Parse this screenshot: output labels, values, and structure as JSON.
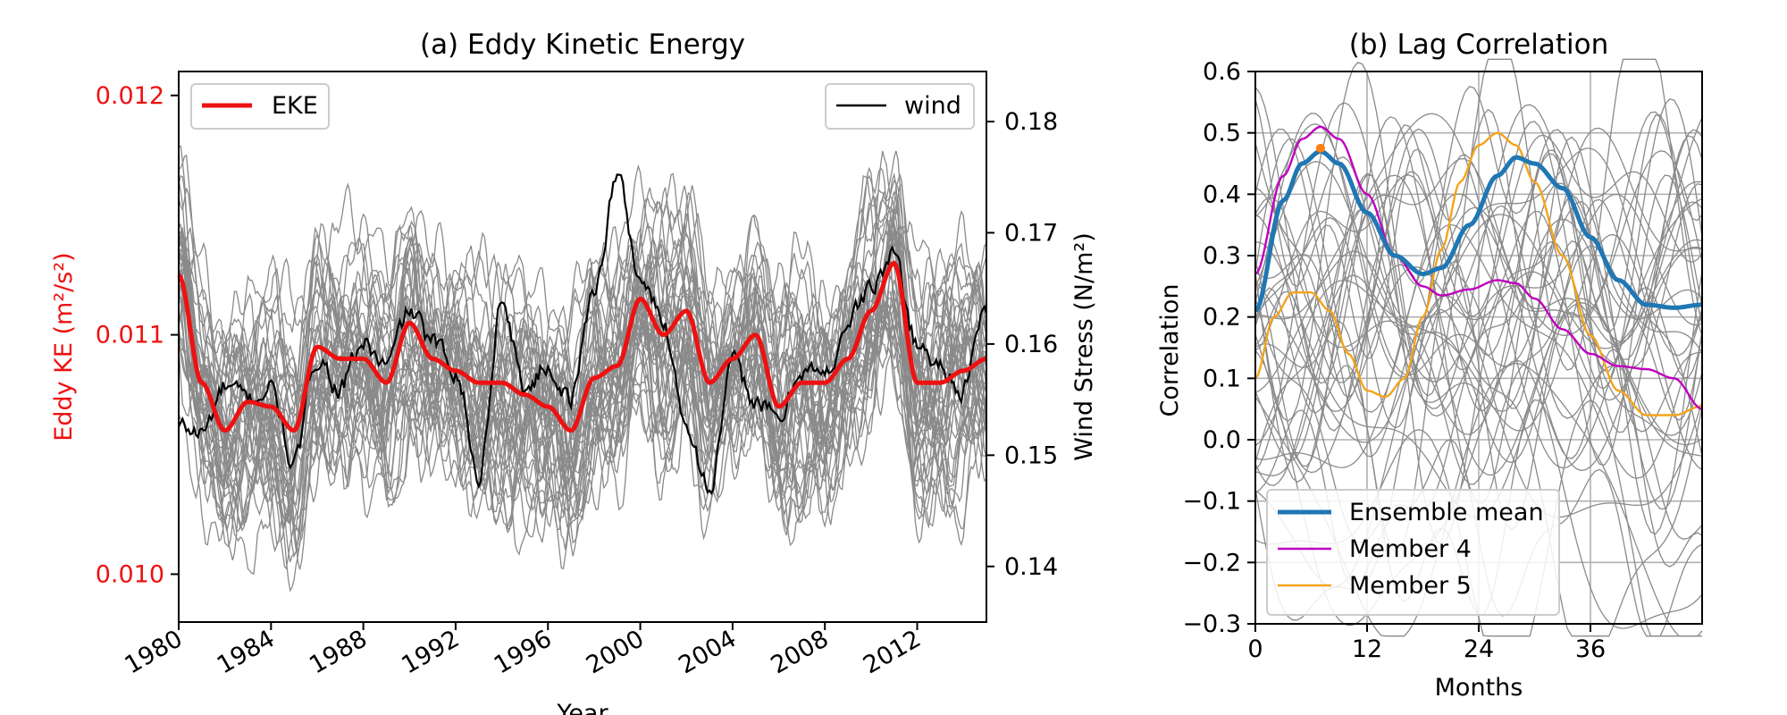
{
  "chart_data": [
    {
      "type": "line",
      "title": "(a) Eddy Kinetic Energy",
      "xlabel": "Year",
      "ylabel_left": "Eddy KE (m²/s²)",
      "ylabel_right": "Wind Stress (N/m²)",
      "xlim": [
        1980,
        2015
      ],
      "ylim_left": [
        0.0098,
        0.0121
      ],
      "ylim_right": [
        0.135,
        0.1845
      ],
      "x_ticks": [
        "1980",
        "1984",
        "1988",
        "1992",
        "1996",
        "2000",
        "2004",
        "2008",
        "2012"
      ],
      "y_left_ticks": [
        "0.010",
        "0.011",
        "0.012"
      ],
      "y_right_ticks": [
        "0.14",
        "0.15",
        "0.16",
        "0.17",
        "0.18"
      ],
      "ensemble_member_count": 40,
      "series": [
        {
          "name": "EKE",
          "axis": "left",
          "color": "#ee1111",
          "x": [
            1980,
            1981,
            1982,
            1983,
            1984,
            1985,
            1986,
            1987,
            1988,
            1989,
            1990,
            1991,
            1992,
            1993,
            1994,
            1995,
            1996,
            1997,
            1998,
            1999,
            2000,
            2001,
            2002,
            2003,
            2004,
            2005,
            2006,
            2007,
            2008,
            2009,
            2010,
            2011,
            2012,
            2013,
            2014,
            2015
          ],
          "values": [
            0.01125,
            0.0108,
            0.0106,
            0.01072,
            0.0107,
            0.0106,
            0.01095,
            0.0109,
            0.0109,
            0.0108,
            0.01105,
            0.0109,
            0.01085,
            0.0108,
            0.0108,
            0.01075,
            0.0107,
            0.0106,
            0.01082,
            0.01087,
            0.01115,
            0.011,
            0.0111,
            0.0108,
            0.0109,
            0.011,
            0.0107,
            0.0108,
            0.0108,
            0.0109,
            0.0111,
            0.0113,
            0.0108,
            0.0108,
            0.01085,
            0.0109
          ]
        },
        {
          "name": "wind",
          "axis": "right",
          "color": "#000000",
          "x": [
            1980,
            1981,
            1982,
            1983,
            1984,
            1985,
            1986,
            1987,
            1988,
            1989,
            1990,
            1991,
            1992,
            1993,
            1994,
            1995,
            1996,
            1997,
            1998,
            1999,
            2000,
            2001,
            2002,
            2003,
            2004,
            2005,
            2006,
            2007,
            2008,
            2009,
            2010,
            2011,
            2012,
            2013,
            2014,
            2015
          ],
          "values": [
            0.1525,
            0.152,
            0.156,
            0.155,
            0.156,
            0.149,
            0.159,
            0.156,
            0.16,
            0.158,
            0.163,
            0.16,
            0.158,
            0.148,
            0.164,
            0.156,
            0.158,
            0.155,
            0.165,
            0.175,
            0.166,
            0.162,
            0.153,
            0.147,
            0.158,
            0.155,
            0.153,
            0.158,
            0.157,
            0.162,
            0.165,
            0.168,
            0.16,
            0.158,
            0.156,
            0.163
          ]
        }
      ],
      "legend": [
        {
          "label": "EKE",
          "position": "upper-left"
        },
        {
          "label": "wind",
          "position": "upper-right"
        }
      ]
    },
    {
      "type": "line",
      "title": "(b) Lag Correlation",
      "xlabel": "Months",
      "ylabel": "Correlation",
      "xlim": [
        0,
        48
      ],
      "ylim": [
        -0.3,
        0.6
      ],
      "x_ticks": [
        "0",
        "12",
        "24",
        "36"
      ],
      "y_ticks": [
        "0.6",
        "0.5",
        "0.4",
        "0.3",
        "0.2",
        "0.1",
        "0.0",
        "−0.1",
        "−0.2",
        "−0.3"
      ],
      "grid": true,
      "ensemble_member_count": 40,
      "series": [
        {
          "name": "Ensemble mean",
          "color": "#1f77b4",
          "x": [
            0,
            3,
            5,
            7,
            9,
            12,
            15,
            18,
            20,
            23,
            26,
            28,
            30,
            33,
            36,
            39,
            42,
            45,
            48
          ],
          "values": [
            0.21,
            0.39,
            0.45,
            0.47,
            0.45,
            0.37,
            0.3,
            0.27,
            0.28,
            0.35,
            0.43,
            0.46,
            0.45,
            0.41,
            0.33,
            0.26,
            0.22,
            0.215,
            0.22
          ]
        },
        {
          "name": "Member 4",
          "color": "#bf00bf",
          "x": [
            0,
            3,
            5,
            7,
            9,
            12,
            15,
            18,
            20,
            23,
            26,
            28,
            30,
            33,
            36,
            39,
            42,
            45,
            48
          ],
          "values": [
            0.27,
            0.43,
            0.49,
            0.51,
            0.49,
            0.4,
            0.3,
            0.25,
            0.235,
            0.245,
            0.26,
            0.255,
            0.23,
            0.18,
            0.14,
            0.12,
            0.115,
            0.1,
            0.05
          ]
        },
        {
          "name": "Member 5",
          "color": "#f5a31a",
          "x": [
            0,
            2,
            4,
            6,
            8,
            10,
            12,
            14,
            16,
            18,
            20,
            22,
            24,
            26,
            28,
            30,
            33,
            36,
            39,
            42,
            45,
            48
          ],
          "values": [
            0.1,
            0.2,
            0.24,
            0.24,
            0.21,
            0.14,
            0.08,
            0.07,
            0.1,
            0.2,
            0.31,
            0.42,
            0.48,
            0.5,
            0.48,
            0.42,
            0.3,
            0.17,
            0.08,
            0.04,
            0.04,
            0.055
          ]
        }
      ],
      "marker": {
        "x": 7,
        "value": 0.475,
        "color": "#ff7f0e"
      },
      "legend": [
        {
          "label": "Ensemble mean",
          "position": "lower-left"
        },
        {
          "label": "Member 4",
          "position": "lower-left"
        },
        {
          "label": "Member 5",
          "position": "lower-left"
        }
      ]
    }
  ]
}
